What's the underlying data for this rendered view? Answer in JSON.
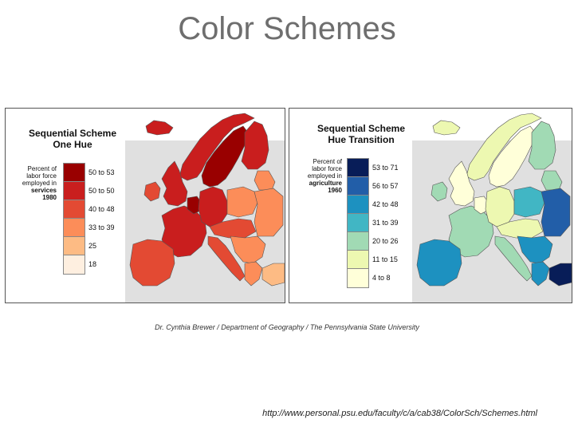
{
  "slide": {
    "title": "Color Schemes"
  },
  "credit": "Dr. Cynthia Brewer / Department of Geography / The Pennsylvania State University",
  "url": "http://www.personal.psu.edu/faculty/c/a/cab38/ColorSch/Schemes.html",
  "colors": {
    "land_background": "#e0e0e0",
    "sea": "#ffffff",
    "border": "#555555"
  },
  "maps": [
    {
      "title_lines": [
        "Sequential Scheme",
        "One Hue"
      ],
      "desc_lines": [
        "Percent of",
        "labor force",
        "employed in",
        "services",
        "1980"
      ],
      "legend": [
        {
          "label": "50 to 53",
          "color": "#990000"
        },
        {
          "label": "50 to 50",
          "color": "#c91e1e"
        },
        {
          "label": "40 to 48",
          "color": "#e34a33"
        },
        {
          "label": "33 to 39",
          "color": "#fc8d59"
        },
        {
          "label": "25",
          "color": "#fdbb84"
        },
        {
          "label": "18",
          "color": "#feefe0"
        }
      ],
      "regions": [
        {
          "name": "iceland",
          "value_class": 1
        },
        {
          "name": "norway",
          "value_class": 1
        },
        {
          "name": "sweden",
          "value_class": 0
        },
        {
          "name": "finland",
          "value_class": 1
        },
        {
          "name": "uk",
          "value_class": 1
        },
        {
          "name": "ireland",
          "value_class": 2
        },
        {
          "name": "france",
          "value_class": 1
        },
        {
          "name": "iberia",
          "value_class": 2
        },
        {
          "name": "benelux",
          "value_class": 0
        },
        {
          "name": "germany",
          "value_class": 1
        },
        {
          "name": "poland",
          "value_class": 3
        },
        {
          "name": "central",
          "value_class": 2
        },
        {
          "name": "italy",
          "value_class": 2
        },
        {
          "name": "balkans",
          "value_class": 3
        },
        {
          "name": "greece",
          "value_class": 3
        },
        {
          "name": "baltics",
          "value_class": 3
        },
        {
          "name": "east",
          "value_class": 3
        },
        {
          "name": "turkey",
          "value_class": 4
        }
      ]
    },
    {
      "title_lines": [
        "Sequential Scheme",
        "Hue Transition"
      ],
      "desc_lines": [
        "Percent of",
        "labor force",
        "employed in",
        "agriculture",
        "1960"
      ],
      "legend": [
        {
          "label": "53 to 71",
          "color": "#081d58"
        },
        {
          "label": "56 to 57",
          "color": "#225ea8"
        },
        {
          "label": "42 to 48",
          "color": "#1d91c0"
        },
        {
          "label": "31 to 39",
          "color": "#41b6c4"
        },
        {
          "label": "20 to 26",
          "color": "#a1dab4"
        },
        {
          "label": "11 to 15",
          "color": "#edf8b1"
        },
        {
          "label": "4 to 8",
          "color": "#ffffd9"
        }
      ],
      "regions": [
        {
          "name": "iceland",
          "value_class": 5
        },
        {
          "name": "norway",
          "value_class": 5
        },
        {
          "name": "sweden",
          "value_class": 6
        },
        {
          "name": "finland",
          "value_class": 4
        },
        {
          "name": "uk",
          "value_class": 6
        },
        {
          "name": "ireland",
          "value_class": 4
        },
        {
          "name": "france",
          "value_class": 4
        },
        {
          "name": "iberia",
          "value_class": 2
        },
        {
          "name": "benelux",
          "value_class": 6
        },
        {
          "name": "germany",
          "value_class": 5
        },
        {
          "name": "poland",
          "value_class": 3
        },
        {
          "name": "central",
          "value_class": 5
        },
        {
          "name": "italy",
          "value_class": 4
        },
        {
          "name": "balkans",
          "value_class": 2
        },
        {
          "name": "greece",
          "value_class": 2
        },
        {
          "name": "baltics",
          "value_class": 4
        },
        {
          "name": "east",
          "value_class": 1
        },
        {
          "name": "turkey",
          "value_class": 0
        }
      ]
    }
  ]
}
